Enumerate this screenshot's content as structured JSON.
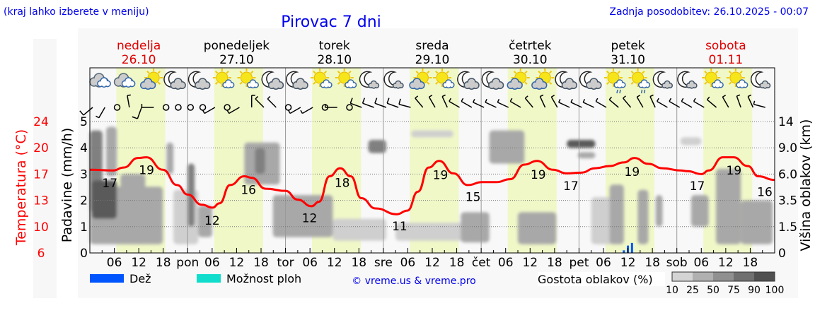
{
  "header": {
    "hint": "(kraj lahko izberete v meniju)",
    "title": "Pirovac 7 dni",
    "updated": "Zadnja posodobitev: 26.10.2025 - 00:07"
  },
  "colors": {
    "link": "#0000ee",
    "temp": "#ff0000",
    "weekend": "#e00000",
    "rain": "#0055ff",
    "showers": "#11ddcc",
    "daylight": "#f0f8c8",
    "panel": "#f8f8f8"
  },
  "days": [
    {
      "name": "nedelja",
      "date": "26.10",
      "weekend": true,
      "abbr": ""
    },
    {
      "name": "ponedeljek",
      "date": "27.10",
      "weekend": false,
      "abbr": "pon"
    },
    {
      "name": "torek",
      "date": "28.10",
      "weekend": false,
      "abbr": "tor"
    },
    {
      "name": "sreda",
      "date": "29.10",
      "weekend": false,
      "abbr": "sre"
    },
    {
      "name": "četrtek",
      "date": "30.10",
      "weekend": false,
      "abbr": "čet"
    },
    {
      "name": "petek",
      "date": "31.10",
      "weekend": false,
      "abbr": "pet"
    },
    {
      "name": "sobota",
      "date": "01.11",
      "weekend": true,
      "abbr": "sob"
    }
  ],
  "hour_ticks": [
    "06",
    "12",
    "18"
  ],
  "daylight_hours": [
    6.5,
    18.5
  ],
  "icons": [
    "cloudy",
    "cloudy",
    "sun-cloud",
    "moon-cloud",
    "moon-cloud",
    "sun-small-cloud",
    "sun-small-cloud",
    "moon-cloud",
    "moon-cloud",
    "sun-small-cloud",
    "sun-small-cloud",
    "moon-small-cloud",
    "moon-small-cloud",
    "sun-cloud",
    "sun-small-cloud",
    "moon-cloud",
    "moon-cloud",
    "sun-cloud",
    "sun-cloud",
    "moon-cloud",
    "moon-cloud",
    "sun-rain",
    "sun-rain",
    "moon-small-cloud",
    "moon-small-cloud",
    "sun-small-cloud",
    "sun-small-cloud",
    "moon-small-cloud"
  ],
  "wind": [
    {
      "dir": 230,
      "kt": 10
    },
    {
      "dir": 210,
      "kt": 5
    },
    {
      "dir": null
    },
    {
      "dir": 350,
      "kt": 5
    },
    {
      "dir": 200,
      "kt": 10
    },
    {
      "dir": 270,
      "kt": 5
    },
    {
      "dir": null
    },
    {
      "dir": null
    },
    {
      "dir": null
    },
    {
      "dir": null
    },
    {
      "dir": 240,
      "kt": 5
    },
    {
      "dir": null
    },
    {
      "dir": 240,
      "kt": 5
    },
    {
      "dir": 360,
      "kt": 5
    },
    {
      "dir": 315,
      "kt": 5
    },
    {
      "dir": 315,
      "kt": 5
    },
    {
      "dir": null
    },
    {
      "dir": 240,
      "kt": 5
    },
    {
      "dir": 240,
      "kt": 5
    },
    {
      "dir": null
    },
    {
      "dir": 270,
      "kt": 5
    },
    {
      "dir": null
    },
    {
      "dir": 290,
      "kt": 10
    },
    {
      "dir": 290,
      "kt": 10
    },
    {
      "dir": 290,
      "kt": 10
    },
    {
      "dir": 290,
      "kt": 10
    },
    {
      "dir": 285,
      "kt": 10
    },
    {
      "dir": 320,
      "kt": 5
    },
    {
      "dir": 330,
      "kt": 5
    },
    {
      "dir": 335,
      "kt": 5
    },
    {
      "dir": 300,
      "kt": 5
    },
    {
      "dir": 300,
      "kt": 5
    },
    {
      "dir": 295,
      "kt": 5
    },
    {
      "dir": 295,
      "kt": 5
    },
    {
      "dir": 295,
      "kt": 5
    },
    {
      "dir": 300,
      "kt": 5
    },
    {
      "dir": 320,
      "kt": 5
    },
    {
      "dir": 335,
      "kt": 5
    },
    {
      "dir": 330,
      "kt": 5
    },
    {
      "dir": 295,
      "kt": 5
    },
    {
      "dir": 295,
      "kt": 5
    },
    {
      "dir": 295,
      "kt": 5
    },
    {
      "dir": 300,
      "kt": 5
    },
    {
      "dir": 310,
      "kt": 5
    },
    {
      "dir": 320,
      "kt": 5
    },
    {
      "dir": 330,
      "kt": 5
    },
    {
      "dir": 335,
      "kt": 5
    },
    {
      "dir": 300,
      "kt": 5
    },
    {
      "dir": 300,
      "kt": 5
    },
    {
      "dir": 300,
      "kt": 5
    },
    {
      "dir": 300,
      "kt": 5
    },
    {
      "dir": 310,
      "kt": 5
    },
    {
      "dir": 330,
      "kt": 5
    },
    {
      "dir": 340,
      "kt": 5
    },
    {
      "dir": 335,
      "kt": 5
    },
    {
      "dir": 285,
      "kt": 5
    }
  ],
  "chart_data": {
    "type": "line",
    "title": "Pirovac 7 dni",
    "x_unit": "hours from 26.10 00:00",
    "xlim": [
      0,
      168
    ],
    "left_axes": [
      {
        "label": "Temperatura (°C)",
        "ticks": [
          "6",
          "10",
          "13",
          "17",
          "20",
          "24"
        ],
        "range": [
          6,
          24
        ]
      },
      {
        "label": "Padavine (mm/h)",
        "ticks": [
          "0",
          "1",
          "2",
          "3",
          "4",
          "5"
        ],
        "range": [
          0,
          5
        ]
      }
    ],
    "right_axis": {
      "label": "Višina oblakov (km)",
      "ticks": [
        "0",
        "1.5",
        "3.5",
        "6.0",
        "9.0",
        "14"
      ]
    },
    "grid": true,
    "temperature": {
      "name": "Temperatura",
      "points": [
        [
          0,
          17.4
        ],
        [
          5.7,
          17.3
        ],
        [
          8.3,
          17.7
        ],
        [
          11.8,
          19.0
        ],
        [
          13.9,
          19.1
        ],
        [
          17.9,
          17.4
        ],
        [
          21.4,
          15.3
        ],
        [
          24,
          14.0
        ],
        [
          27.5,
          12.6
        ],
        [
          30.1,
          12.2
        ],
        [
          31.8,
          12.8
        ],
        [
          34.4,
          15.3
        ],
        [
          37.9,
          16.5
        ],
        [
          39.7,
          16.3
        ],
        [
          43.1,
          14.8
        ],
        [
          48,
          14.5
        ],
        [
          51,
          13.3
        ],
        [
          54.4,
          12.4
        ],
        [
          56.2,
          13.0
        ],
        [
          58.8,
          16.5
        ],
        [
          61.4,
          17.6
        ],
        [
          64,
          16.5
        ],
        [
          66.6,
          13.5
        ],
        [
          70.1,
          12.1
        ],
        [
          75.3,
          11.3
        ],
        [
          77.9,
          11.8
        ],
        [
          80.5,
          14.4
        ],
        [
          83.1,
          17.7
        ],
        [
          85.7,
          18.6
        ],
        [
          89.2,
          16.9
        ],
        [
          92.7,
          15.3
        ],
        [
          96.2,
          15.7
        ],
        [
          99.7,
          15.7
        ],
        [
          103.1,
          16.1
        ],
        [
          106.6,
          18.1
        ],
        [
          109.7,
          18.6
        ],
        [
          113.6,
          17.4
        ],
        [
          117,
          16.9
        ],
        [
          120.5,
          17.0
        ],
        [
          124,
          17.6
        ],
        [
          127.5,
          17.9
        ],
        [
          131,
          18.4
        ],
        [
          133.6,
          19.0
        ],
        [
          137,
          18.2
        ],
        [
          140.5,
          17.6
        ],
        [
          144.9,
          17.3
        ],
        [
          146.6,
          17.2
        ],
        [
          150.1,
          16.8
        ],
        [
          151.8,
          17.3
        ],
        [
          155.3,
          19.1
        ],
        [
          157.9,
          19.1
        ],
        [
          161.4,
          17.9
        ],
        [
          164,
          16.5
        ],
        [
          168,
          16.0
        ]
      ],
      "labels": [
        [
          4.9,
          "17"
        ],
        [
          13.9,
          "19"
        ],
        [
          30,
          "12"
        ],
        [
          38.9,
          "16"
        ],
        [
          53.9,
          "12"
        ],
        [
          61.9,
          "18"
        ],
        [
          76,
          "11"
        ],
        [
          86,
          "19"
        ],
        [
          94,
          "15"
        ],
        [
          110,
          "19"
        ],
        [
          118,
          "17"
        ],
        [
          133,
          "19"
        ],
        [
          149,
          "17"
        ],
        [
          158,
          "19"
        ],
        [
          167,
          "16"
        ]
      ]
    },
    "rain_mm_h": [
      [
        131,
        0.1
      ],
      [
        132,
        0.28
      ],
      [
        133,
        0.38
      ]
    ],
    "clouds": [
      [
        0,
        17.9,
        0.5,
        4.8,
        50
      ],
      [
        0,
        3.1,
        2.6,
        12.3,
        75
      ],
      [
        0.5,
        6.6,
        2.1,
        5.4,
        90
      ],
      [
        4,
        6.6,
        5.8,
        13,
        50
      ],
      [
        7.5,
        13.6,
        3.8,
        6.0,
        50
      ],
      [
        18.8,
        20.5,
        6,
        10,
        50
      ],
      [
        20.5,
        26.6,
        0.5,
        4.5,
        25
      ],
      [
        24,
        25.7,
        1.5,
        7.2,
        75
      ],
      [
        26.6,
        30,
        0.9,
        3.1,
        50
      ],
      [
        37.9,
        46.6,
        5,
        10,
        50
      ],
      [
        40.5,
        43,
        6,
        9,
        75
      ],
      [
        44.9,
        59.6,
        0.9,
        4,
        50
      ],
      [
        59.6,
        72.7,
        0.7,
        2.1,
        25
      ],
      [
        68.3,
        72.7,
        8.4,
        10.5,
        75
      ],
      [
        75,
        96,
        0.7,
        1.8,
        25
      ],
      [
        91,
        98,
        0.6,
        2.6,
        50
      ],
      [
        78.8,
        89.2,
        11,
        12.3,
        25
      ],
      [
        98,
        106.6,
        7.2,
        12.3,
        50
      ],
      [
        105,
        114.4,
        0.5,
        2.6,
        50
      ],
      [
        117,
        124,
        9,
        10.5,
        90
      ],
      [
        119.7,
        124,
        7.8,
        8.5,
        50
      ],
      [
        123,
        131,
        0.5,
        3.8,
        25
      ],
      [
        127.5,
        131,
        0.5,
        5,
        50
      ],
      [
        134.4,
        137,
        0.5,
        4.5,
        50
      ],
      [
        138.8,
        140.5,
        1.5,
        4,
        50
      ],
      [
        147.5,
        151.8,
        1.5,
        4,
        50
      ],
      [
        153.6,
        159.7,
        0.5,
        6.6,
        50
      ],
      [
        159.7,
        167.5,
        0.5,
        3.5,
        50
      ],
      [
        144.9,
        150,
        9.5,
        11,
        25
      ]
    ]
  },
  "legend": {
    "rain": "Dež",
    "showers": "Možnost ploh",
    "copyright": "© vreme.us & vreme.pro",
    "density_title": "Gostota oblakov (%)",
    "density_ticks": [
      "10",
      "25",
      "50",
      "75",
      "90",
      "100"
    ],
    "density_colors": [
      "#d4d4d4",
      "#b0b0b0",
      "#909090",
      "#707070",
      "#505050"
    ]
  }
}
